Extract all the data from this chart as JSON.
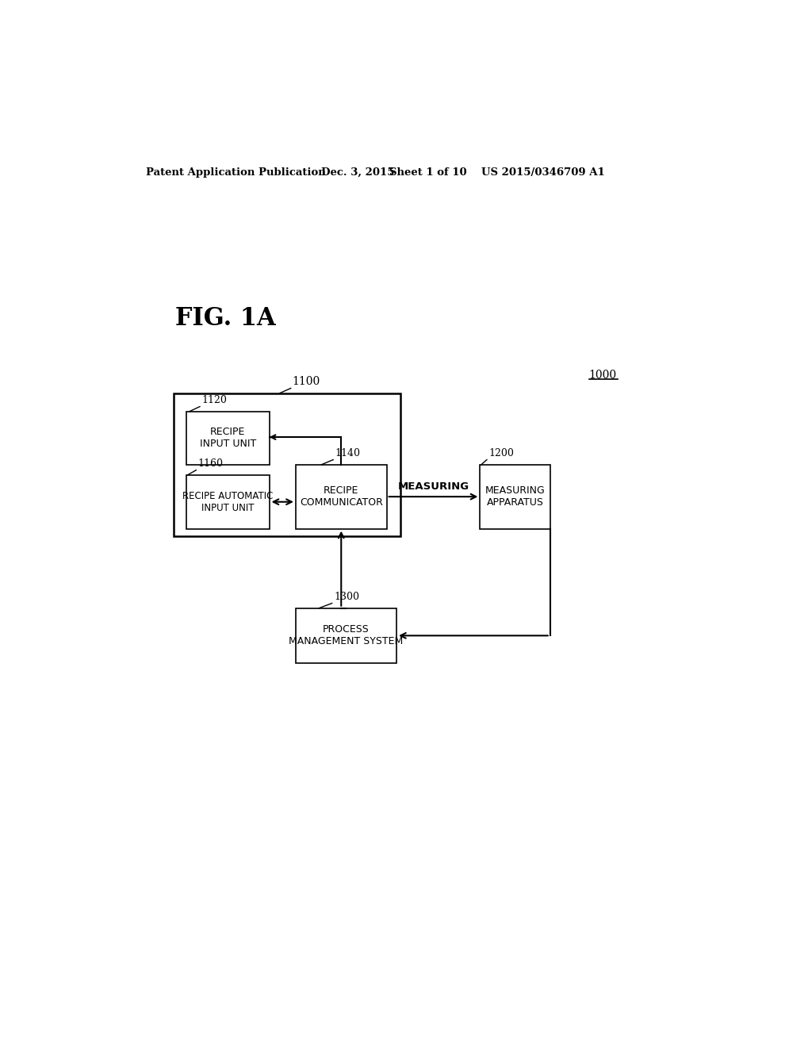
{
  "bg_color": "#ffffff",
  "header_text": "Patent Application Publication",
  "header_date": "Dec. 3, 2015",
  "header_sheet": "Sheet 1 of 10",
  "header_patent": "US 2015/0346709 A1",
  "fig_label": "FIG. 1A",
  "label_1000": "1000",
  "label_1100": "1100",
  "label_1120": "1120",
  "label_1140": "1140",
  "label_1160": "1160",
  "label_1200": "1200",
  "label_1300": "1300",
  "box_1120_text": "RECIPE\nINPUT UNIT",
  "box_1140_text": "RECIPE\nCOMMUNICATOR",
  "box_1160_text": "RECIPE AUTOMATIC\nINPUT UNIT",
  "box_1200_text": "MEASURING\nAPPARATUS",
  "box_1300_text": "PROCESS\nMANAGEMENT SYSTEM",
  "arrow_measuring": "MEASURING"
}
